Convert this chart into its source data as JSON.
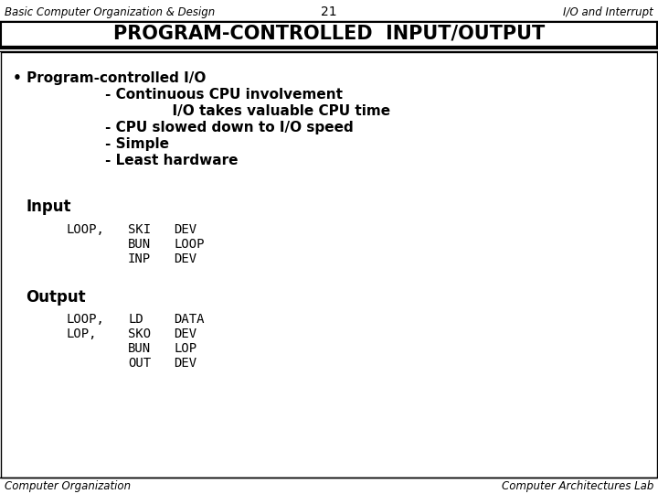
{
  "header_left": "Basic Computer Organization & Design",
  "header_center": "21",
  "header_right": "I/O and Interrupt",
  "title": "PROGRAM-CONTROLLED  INPUT/OUTPUT",
  "bullet_main": "• Program-controlled I/O",
  "bullet_lines": [
    "- Continuous CPU involvement",
    "              I/O takes valuable CPU time",
    "- CPU slowed down to I/O speed",
    "- Simple",
    "- Least hardware"
  ],
  "input_label": "Input",
  "input_labels": [
    "LOOP,",
    "",
    ""
  ],
  "input_cmds": [
    "SKI",
    "BUN",
    "INP"
  ],
  "input_args": [
    "DEV",
    "LOOP",
    "DEV"
  ],
  "output_label": "Output",
  "out_labels": [
    "LOOP,",
    "LOP,",
    "",
    ""
  ],
  "out_cmds": [
    "LD",
    "SKO",
    "BUN",
    "OUT"
  ],
  "out_args": [
    "DATA",
    "DEV",
    "LOP",
    "DEV"
  ],
  "footer_left": "Computer Organization",
  "footer_right": "Computer Architectures Lab",
  "bg_color": "#ffffff",
  "border_color": "#000000",
  "text_color": "#000000"
}
